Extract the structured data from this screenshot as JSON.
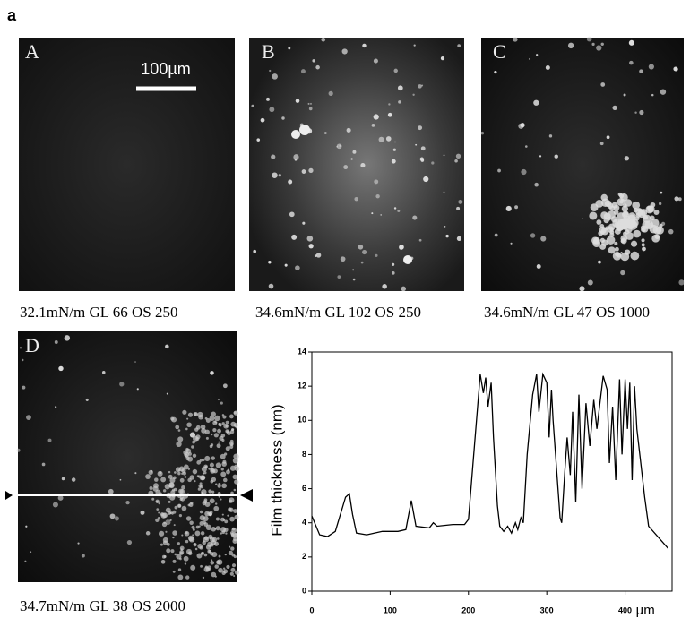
{
  "figure_label": "a",
  "panels": [
    {
      "letter": "A",
      "caption": "32.1mN/m GL 66 OS 250",
      "scale_bar": "100µm"
    },
    {
      "letter": "B",
      "caption": "34.6mN/m GL 102 OS 250"
    },
    {
      "letter": "C",
      "caption": "34.6mN/m GL 47 OS 1000"
    },
    {
      "letter": "D",
      "caption": "34.7mN/m GL 38 OS 2000"
    }
  ],
  "chart_data": {
    "type": "line",
    "y_label": "Film thickness (nm)",
    "x_unit": "µm",
    "color": "#000000",
    "x": [
      0,
      10,
      20,
      30,
      43,
      48,
      52,
      57,
      70,
      90,
      110,
      120,
      127,
      133,
      150,
      155,
      160,
      180,
      195,
      200,
      215,
      219,
      222,
      225,
      229,
      232,
      237,
      240,
      245,
      250,
      255,
      260,
      263,
      267,
      270,
      275,
      282,
      287,
      290,
      295,
      300,
      303,
      306,
      308,
      317,
      319,
      323,
      326,
      330,
      333,
      337,
      341,
      345,
      350,
      355,
      360,
      364,
      372,
      377,
      380,
      384,
      388,
      393,
      396,
      400,
      403,
      406,
      409,
      412,
      415,
      425,
      430,
      455
    ],
    "values": [
      4.4,
      3.3,
      3.2,
      3.5,
      5.5,
      5.7,
      4.5,
      3.4,
      3.3,
      3.5,
      3.5,
      3.6,
      5.3,
      3.8,
      3.7,
      4.0,
      3.8,
      3.9,
      3.9,
      4.2,
      12.7,
      11.6,
      12.5,
      10.8,
      12.2,
      9,
      5,
      3.8,
      3.5,
      3.8,
      3.4,
      4,
      3.6,
      4.3,
      4.0,
      8,
      11.5,
      12.7,
      10.5,
      12.7,
      12.2,
      9,
      11.8,
      10,
      4.3,
      4.0,
      7,
      9,
      6.8,
      10.5,
      5.2,
      11.5,
      6,
      11,
      8.5,
      11.2,
      9.5,
      12.6,
      11.8,
      7.5,
      10.8,
      6.5,
      12.4,
      8,
      12.4,
      9.5,
      12.2,
      6.5,
      12.0,
      9.5,
      5.5,
      3.8,
      2.5
    ],
    "xlim": [
      0,
      460
    ],
    "xticks": [
      0,
      100,
      200,
      300,
      400
    ],
    "ylim": [
      0,
      14
    ],
    "yticks": [
      0,
      2,
      4,
      6,
      8,
      10,
      12,
      14
    ]
  }
}
